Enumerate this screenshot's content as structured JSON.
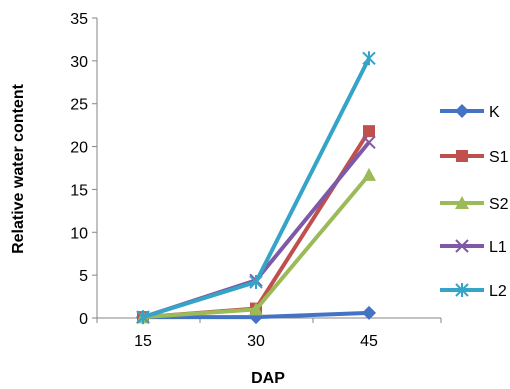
{
  "chart_data": {
    "type": "line",
    "title": "",
    "xlabel": "DAP",
    "ylabel": "Relative water content",
    "categories": [
      "15",
      "30",
      "45"
    ],
    "ylim": [
      0,
      35
    ],
    "yticks": [
      0,
      5,
      10,
      15,
      20,
      25,
      30,
      35
    ],
    "grid": false,
    "legend_position": "right",
    "series": [
      {
        "name": "K",
        "values": [
          0.1,
          0.1,
          0.6
        ],
        "color": "#4472C4",
        "marker": "diamond"
      },
      {
        "name": "S1",
        "values": [
          0.1,
          1.1,
          21.8
        ],
        "color": "#C0504D",
        "marker": "square"
      },
      {
        "name": "S2",
        "values": [
          0.1,
          1.0,
          16.7
        ],
        "color": "#9BBB59",
        "marker": "triangle"
      },
      {
        "name": "L1",
        "values": [
          0.1,
          4.4,
          20.5
        ],
        "color": "#7E5AA6",
        "marker": "x"
      },
      {
        "name": "L2",
        "values": [
          0.1,
          4.2,
          30.3
        ],
        "color": "#35A4C7",
        "marker": "star"
      }
    ]
  }
}
